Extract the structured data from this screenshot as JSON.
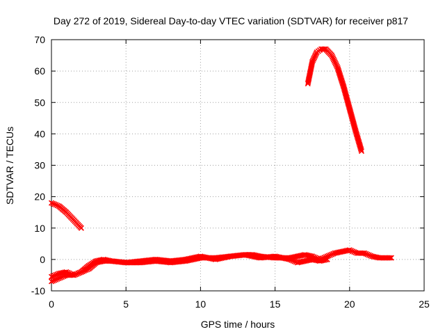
{
  "chart_data": {
    "type": "scatter",
    "title": "Day 272 of 2019, Sidereal Day-to-day VTEC variation (SDTVAR) for receiver p817",
    "xlabel": "GPS time / hours",
    "ylabel": "SDTVAR / TECUs",
    "xlim": [
      0,
      25
    ],
    "ylim": [
      -10,
      70
    ],
    "xticks": [
      0,
      5,
      10,
      15,
      20,
      25
    ],
    "yticks": [
      -10,
      0,
      10,
      20,
      30,
      40,
      50,
      60,
      70
    ],
    "xtick_labels": [
      "0",
      "5",
      "10",
      "15",
      "20",
      "25"
    ],
    "ytick_labels": [
      "-10",
      "0",
      "10",
      "20",
      "30",
      "40",
      "50",
      "60",
      "70"
    ],
    "grid": true,
    "marker": "cross",
    "color": "#ff0000",
    "series": [
      {
        "name": "track-1-low",
        "x": [
          0,
          0.5,
          1,
          1.5,
          2,
          2.5,
          3,
          3.5,
          4,
          5,
          6,
          7,
          8,
          9,
          10,
          11,
          12,
          13,
          13.5,
          14,
          15,
          16,
          17,
          17.5,
          18,
          18.5,
          19,
          19.5,
          20,
          20.5,
          21,
          21.5,
          22,
          22.5,
          22.8
        ],
        "y": [
          -7,
          -6,
          -5,
          -5,
          -4,
          -3,
          -1,
          -0.5,
          -0.5,
          -1,
          -1,
          -0.5,
          -1,
          -0.5,
          0.5,
          0.5,
          1,
          1.5,
          1.5,
          1,
          0.5,
          0.5,
          1.5,
          1,
          0,
          1,
          2,
          2.5,
          3,
          2,
          2,
          1,
          0.5,
          0.5,
          0.5
        ]
      },
      {
        "name": "track-2-low",
        "x": [
          0,
          0.5,
          1,
          1.5,
          2,
          2.5,
          3,
          3.5,
          4,
          5,
          6,
          7,
          8,
          9,
          10,
          11,
          12,
          13,
          14,
          15,
          16,
          16.5,
          17,
          17.5,
          18,
          18.5
        ],
        "y": [
          -5.5,
          -4.5,
          -4,
          -5,
          -4,
          -2,
          -0.5,
          0,
          -0.5,
          -1,
          -0.5,
          0,
          -0.5,
          0,
          1,
          0,
          1,
          1.5,
          0.5,
          1,
          0,
          -1,
          -0.5,
          0,
          -0.5,
          0
        ]
      },
      {
        "name": "track-early-high",
        "x": [
          0,
          0.5,
          1,
          1.5,
          2
        ],
        "y": [
          18,
          17,
          15,
          12.5,
          10
        ]
      },
      {
        "name": "track-late-high",
        "x": [
          17.2,
          17.5,
          17.8,
          18.1,
          18.4,
          18.8,
          19.2,
          19.6,
          20,
          20.4,
          20.8
        ],
        "y": [
          56,
          63,
          66,
          67,
          67,
          65,
          61,
          55,
          48,
          41,
          34.5
        ]
      }
    ]
  }
}
